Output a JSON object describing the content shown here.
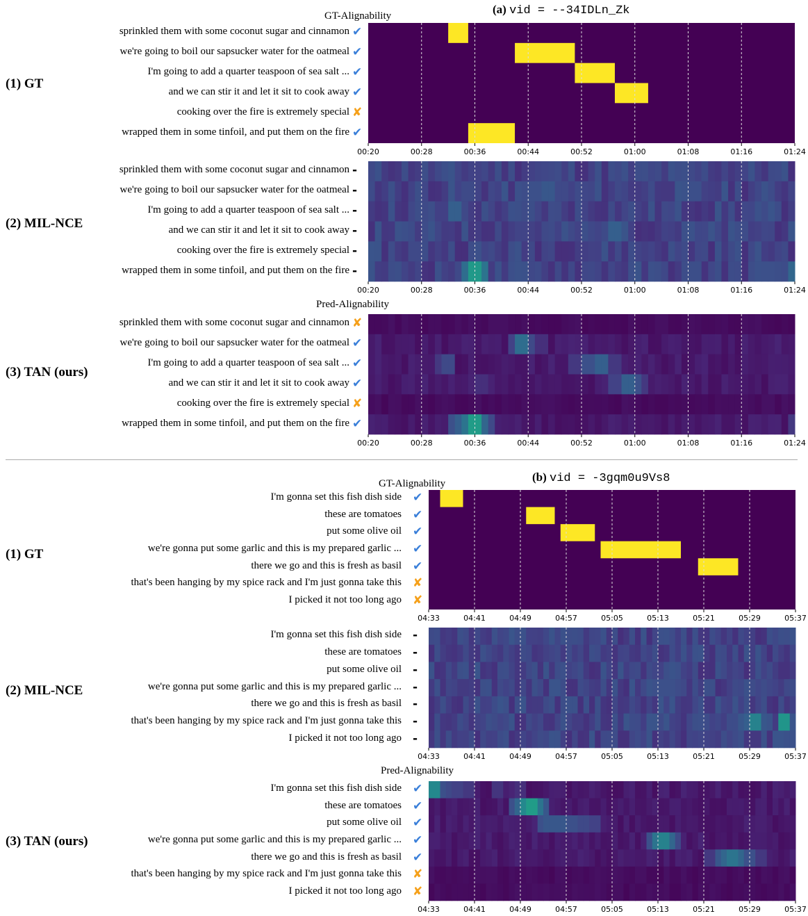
{
  "figure": {
    "panels": [
      {
        "id": "a",
        "label": "(a)",
        "vid_text": "vid = --34IDLn_Zk",
        "time_ticks": [
          "00:20",
          "00:28",
          "00:36",
          "00:44",
          "00:52",
          "01:00",
          "01:08",
          "01:16",
          "01:24"
        ],
        "t_range": [
          20,
          84
        ],
        "sentences": [
          "sprinkled them with some coconut sugar and cinnamon",
          "we're going to boil our sapsucker water for the oatmeal",
          "I'm going to add a quarter teaspoon of sea salt ...",
          "and we can stir it and let it sit to cook away",
          "cooking over the fire is extremely special",
          "wrapped them in some tinfoil, and put them on the fire"
        ],
        "rows": [
          {
            "label": "(1) GT",
            "caption": "GT-Alignability",
            "marks": [
              "check",
              "check",
              "check",
              "check",
              "cross",
              "check"
            ],
            "spans": [
              [
                [
                  32.0,
                  35.0
                ]
              ],
              [
                [
                  42.0,
                  51.0
                ]
              ],
              [
                [
                  51.0,
                  57.0
                ]
              ],
              [
                [
                  57.0,
                  62.0
                ]
              ],
              [],
              [
                [
                  35.0,
                  42.0
                ]
              ]
            ]
          },
          {
            "label": "(2) MIL-NCE",
            "caption": "",
            "marks": [
              "dash",
              "dash",
              "dash",
              "dash",
              "dash",
              "dash"
            ]
          },
          {
            "label": "(3) TAN (ours)",
            "caption": "Pred-Alignability",
            "marks": [
              "cross",
              "check",
              "check",
              "check",
              "cross",
              "check"
            ]
          }
        ]
      },
      {
        "id": "b",
        "label": "(b)",
        "vid_text": "vid = -3gqm0u9Vs8",
        "time_ticks": [
          "04:33",
          "04:41",
          "04:49",
          "04:57",
          "05:05",
          "05:13",
          "05:21",
          "05:29",
          "05:37"
        ],
        "t_range": [
          273,
          337
        ],
        "sentences": [
          "I'm gonna set this fish dish side",
          "these are tomatoes",
          "put some olive oil",
          "we're gonna put some garlic and this is my prepared garlic ...",
          "there we go and this is fresh as basil",
          "that's been hanging by my spice rack and I'm just gonna take this",
          "I picked it not too long ago"
        ],
        "rows": [
          {
            "label": "(1) GT",
            "caption": "GT-Alignability",
            "marks": [
              "check",
              "check",
              "check",
              "check",
              "check",
              "cross",
              "cross"
            ],
            "spans": [
              [
                [
                  275.0,
                  279.0
                ]
              ],
              [
                [
                  290.0,
                  295.0
                ]
              ],
              [
                [
                  296.0,
                  302.0
                ]
              ],
              [
                [
                  303.0,
                  317.0
                ]
              ],
              [
                [
                  320.0,
                  327.0
                ]
              ],
              [],
              []
            ]
          },
          {
            "label": "(2) MIL-NCE",
            "caption": "",
            "marks": [
              "dash",
              "dash",
              "dash",
              "dash",
              "dash",
              "dash",
              "dash"
            ]
          },
          {
            "label": "(3) TAN (ours)",
            "caption": "Pred-Alignability",
            "marks": [
              "check",
              "check",
              "check",
              "check",
              "check",
              "cross",
              "cross"
            ]
          }
        ]
      }
    ],
    "colors": {
      "background": "#440154",
      "peak": "#fde725",
      "check": "#3a7fd9",
      "cross": "#f5a01a",
      "gridline": "#dddddd"
    },
    "heat_features": {
      "a": {
        "mil": [
          {
            "row": 0,
            "peaks": [
              [
                24,
                0.22
              ],
              [
                33,
                0.3
              ],
              [
                36,
                0.25
              ],
              [
                47,
                0.18
              ]
            ]
          },
          {
            "row": 1,
            "peaks": [
              [
                45,
                0.45
              ],
              [
                47,
                0.5
              ],
              [
                48,
                0.4
              ],
              [
                65,
                0.3
              ],
              [
                80,
                0.3
              ]
            ]
          },
          {
            "row": 2,
            "peaks": [
              [
                33,
                0.55
              ],
              [
                48,
                0.3
              ],
              [
                61,
                0.22
              ]
            ]
          },
          {
            "row": 3,
            "peaks": [
              [
                51,
                0.35
              ],
              [
                57,
                0.55
              ],
              [
                58,
                0.45
              ],
              [
                68,
                0.45
              ],
              [
                70,
                0.35
              ]
            ]
          },
          {
            "row": 4,
            "peaks": [
              [
                27,
                0.2
              ],
              [
                52,
                0.2
              ],
              [
                64,
                0.2
              ]
            ]
          },
          {
            "row": 5,
            "peaks": [
              [
                34,
                0.4
              ],
              [
                35,
                0.65
              ],
              [
                36,
                0.98
              ],
              [
                37,
                0.7
              ],
              [
                80,
                0.45
              ],
              [
                84,
                0.6
              ]
            ]
          }
        ],
        "tan": [
          {
            "row": 0,
            "peaks": []
          },
          {
            "row": 1,
            "peaks": [
              [
                42,
                0.35
              ],
              [
                43,
                0.65
              ],
              [
                44,
                0.4
              ],
              [
                46,
                0.25
              ]
            ]
          },
          {
            "row": 2,
            "peaks": [
              [
                31,
                0.3
              ],
              [
                32,
                0.4
              ],
              [
                51,
                0.3
              ],
              [
                53,
                0.45
              ],
              [
                55,
                0.55
              ],
              [
                57,
                0.3
              ]
            ]
          },
          {
            "row": 3,
            "peaks": [
              [
                37,
                0.25
              ],
              [
                57,
                0.35
              ],
              [
                59,
                0.55
              ],
              [
                60,
                0.45
              ],
              [
                61,
                0.3
              ]
            ]
          },
          {
            "row": 4,
            "peaks": []
          },
          {
            "row": 5,
            "peaks": [
              [
                33,
                0.45
              ],
              [
                34,
                0.55
              ],
              [
                35,
                0.7
              ],
              [
                36,
                1.0
              ],
              [
                37,
                0.6
              ],
              [
                38,
                0.4
              ],
              [
                84,
                0.3
              ]
            ]
          }
        ]
      },
      "b": {
        "mil": [
          {
            "row": 0,
            "peaks": [
              [
                274,
                0.35
              ],
              [
                276,
                0.3
              ],
              [
                292,
                0.25
              ],
              [
                300,
                0.22
              ]
            ]
          },
          {
            "row": 1,
            "peaks": [
              [
                287,
                0.2
              ],
              [
                295,
                0.25
              ],
              [
                310,
                0.2
              ]
            ]
          },
          {
            "row": 2,
            "peaks": [
              [
                291,
                0.4
              ],
              [
                294,
                0.3
              ],
              [
                314,
                0.35
              ],
              [
                317,
                0.3
              ]
            ]
          },
          {
            "row": 3,
            "peaks": [
              [
                311,
                0.4
              ],
              [
                313,
                0.45
              ],
              [
                315,
                0.45
              ],
              [
                317,
                0.4
              ]
            ]
          },
          {
            "row": 4,
            "peaks": [
              [
                301,
                0.25
              ],
              [
                319,
                0.2
              ]
            ]
          },
          {
            "row": 5,
            "peaks": [
              [
                328,
                0.5
              ],
              [
                329,
                0.55
              ],
              [
                330,
                0.8
              ],
              [
                331,
                0.5
              ],
              [
                335,
                0.95
              ]
            ]
          },
          {
            "row": 6,
            "peaks": [
              [
                278,
                0.3
              ],
              [
                287,
                0.2
              ],
              [
                330,
                0.3
              ]
            ]
          }
        ],
        "tan": [
          {
            "row": 0,
            "peaks": [
              [
                274,
                0.85
              ],
              [
                275,
                0.45
              ],
              [
                276,
                0.4
              ],
              [
                278,
                0.35
              ],
              [
                280,
                0.3
              ],
              [
                285,
                0.28
              ],
              [
                289,
                0.25
              ]
            ]
          },
          {
            "row": 1,
            "peaks": [
              [
                288,
                0.45
              ],
              [
                289,
                0.6
              ],
              [
                290,
                0.85
              ],
              [
                291,
                1.0
              ],
              [
                292,
                0.7
              ],
              [
                293,
                0.5
              ]
            ]
          },
          {
            "row": 2,
            "peaks": [
              [
                293,
                0.45
              ],
              [
                294,
                0.5
              ],
              [
                296,
                0.5
              ],
              [
                298,
                0.45
              ],
              [
                300,
                0.4
              ],
              [
                302,
                0.35
              ]
            ]
          },
          {
            "row": 3,
            "peaks": [
              [
                312,
                0.45
              ],
              [
                313,
                0.7
              ],
              [
                314,
                0.8
              ],
              [
                315,
                0.6
              ],
              [
                316,
                0.4
              ]
            ]
          },
          {
            "row": 4,
            "peaks": [
              [
                322,
                0.3
              ],
              [
                324,
                0.5
              ],
              [
                325,
                0.6
              ],
              [
                326,
                0.7
              ],
              [
                327,
                0.6
              ],
              [
                329,
                0.45
              ],
              [
                331,
                0.3
              ]
            ]
          },
          {
            "row": 5,
            "peaks": []
          },
          {
            "row": 6,
            "peaks": []
          }
        ]
      }
    }
  }
}
